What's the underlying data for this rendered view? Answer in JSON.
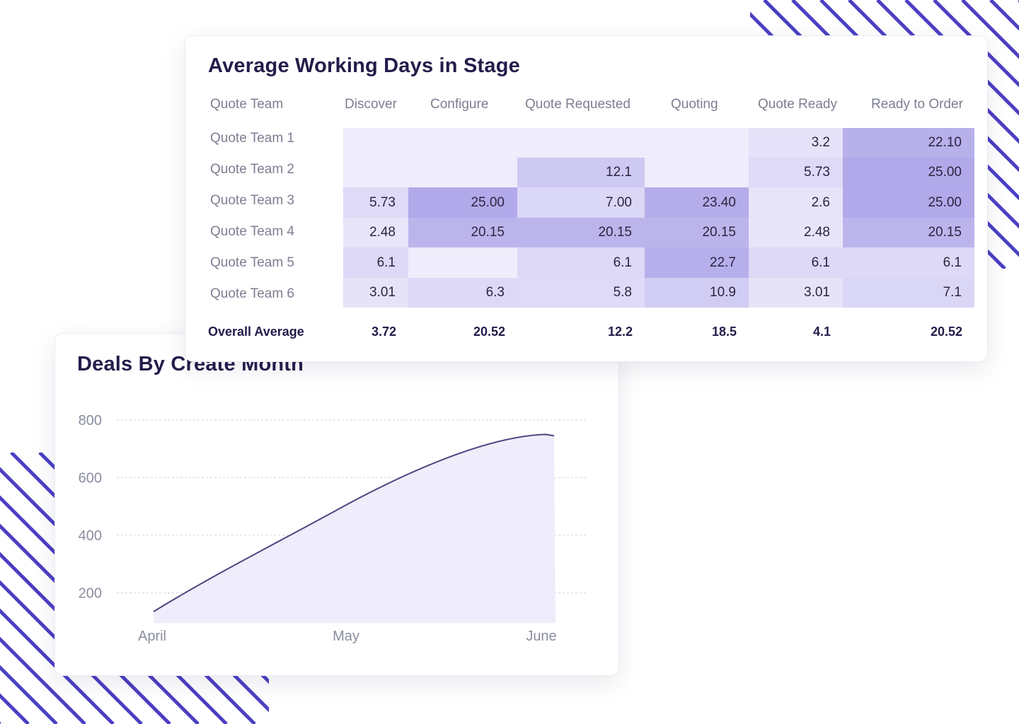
{
  "colors": {
    "accent": "#4b3fc4",
    "heat_light": "#efedfc",
    "heat_dark": "#b1a9e9",
    "line": "#4d4580",
    "area": "#efedfb"
  },
  "stage_card": {
    "title": "Average Working Days in Stage",
    "overall_label": "Overall Average"
  },
  "deals_card": {
    "title": "Deals By Create Month"
  },
  "chart_data": [
    {
      "type": "heatmap",
      "title": "Average Working Days in Stage",
      "row_header": "Quote Team",
      "columns": [
        "Discover",
        "Configure",
        "Quote Requested",
        "Quoting",
        "Quote Ready",
        "Ready to Order"
      ],
      "rows": [
        {
          "label": "Quote Team 1",
          "values": [
            "",
            "",
            "",
            "",
            "3.2",
            "22.10"
          ]
        },
        {
          "label": "Quote Team 2",
          "values": [
            "",
            "",
            "12.1",
            "",
            "5.73",
            "25.00"
          ]
        },
        {
          "label": "Quote Team 3",
          "values": [
            "5.73",
            "25.00",
            "7.00",
            "23.40",
            "2.6",
            "25.00"
          ]
        },
        {
          "label": "Quote Team 4",
          "values": [
            "2.48",
            "20.15",
            "20.15",
            "20.15",
            "2.48",
            "20.15"
          ]
        },
        {
          "label": "Quote Team 5",
          "values": [
            "6.1",
            "",
            "6.1",
            "22.7",
            "6.1",
            "6.1"
          ]
        },
        {
          "label": "Quote Team 6",
          "values": [
            "3.01",
            "6.3",
            "5.8",
            "10.9",
            "3.01",
            "7.1"
          ]
        }
      ],
      "overall_average": [
        "3.72",
        "20.52",
        "12.2",
        "18.5",
        "4.1",
        "20.52"
      ]
    },
    {
      "type": "area",
      "title": "Deals By Create Month",
      "categories": [
        "April",
        "May",
        "June"
      ],
      "series": [
        {
          "values": [
            135,
            505,
            750
          ]
        }
      ],
      "ylim": [
        100,
        800
      ],
      "yticks": [
        200,
        400,
        600,
        800
      ],
      "grid": true
    }
  ]
}
